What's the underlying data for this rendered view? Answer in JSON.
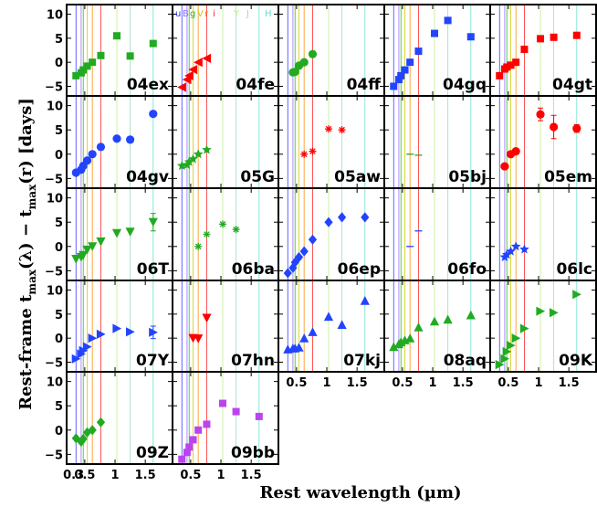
{
  "chart_data": {
    "type": "scatter",
    "layout": "small-multiples grid, 5 columns x 5 rows",
    "xlabel": "Rest wavelength (µm)",
    "ylabel": "Rest-frame t_max(λ) − t_max(r) [days]",
    "ylabel_parts": {
      "a": "Rest-frame t",
      "a_sub": "max",
      "b": "(λ) − t",
      "b_sub": "max",
      "c": "(r) [days]"
    },
    "xlim": [
      0.2,
      1.95
    ],
    "ylim": [
      -7,
      12
    ],
    "xticks": [
      0.5,
      1,
      1.5
    ],
    "xtick_labels": [
      "0.5",
      "1",
      "1.5"
    ],
    "xtick_label_extra": "0.3",
    "yticks": [
      -5,
      0,
      5,
      10
    ],
    "ytick_labels": [
      "−5",
      "0",
      "5",
      "10"
    ],
    "bands": [
      {
        "name": "u",
        "wave": 0.355,
        "color": "#3333ff"
      },
      {
        "name": "B",
        "wave": 0.44,
        "color": "#9966ff"
      },
      {
        "name": "g",
        "wave": 0.475,
        "color": "#22bb22"
      },
      {
        "name": "V",
        "wave": 0.54,
        "color": "#cccc00"
      },
      {
        "name": "r",
        "wave": 0.625,
        "color": "#ff8800"
      },
      {
        "name": "i",
        "wave": 0.765,
        "color": "#ff2222"
      },
      {
        "name": "Y",
        "wave": 1.03,
        "color": "#bbee88"
      },
      {
        "name": "J",
        "wave": 1.25,
        "color": "#99ddbb"
      },
      {
        "name": "H",
        "wave": 1.63,
        "color": "#66ddcc"
      }
    ],
    "band_legend_panel": "04fe",
    "panels": [
      {
        "name": "04ex",
        "color": "#22aa22",
        "marker": "square",
        "points": [
          [
            0.355,
            -2.8
          ],
          [
            0.44,
            -2.2
          ],
          [
            0.475,
            -1.6
          ],
          [
            0.54,
            -0.8
          ],
          [
            0.625,
            0
          ],
          [
            0.765,
            1.4
          ],
          [
            1.03,
            5.5
          ],
          [
            1.25,
            1.3
          ],
          [
            1.63,
            3.9
          ]
        ]
      },
      {
        "name": "04fe",
        "color": "#ff0000",
        "marker": "triangle-left",
        "points": [
          [
            0.355,
            -5.2
          ],
          [
            0.44,
            -3.6
          ],
          [
            0.475,
            -2.8
          ],
          [
            0.54,
            -1.5
          ],
          [
            0.625,
            0
          ],
          [
            0.765,
            0.8
          ]
        ]
      },
      {
        "name": "04ff",
        "color": "#22aa22",
        "marker": "circle",
        "points": [
          [
            0.44,
            -2.1
          ],
          [
            0.475,
            -2
          ],
          [
            0.54,
            -0.7
          ],
          [
            0.625,
            0
          ],
          [
            0.765,
            1.7
          ]
        ]
      },
      {
        "name": "04gq",
        "color": "#2244ff",
        "marker": "square",
        "points": [
          [
            0.355,
            -5
          ],
          [
            0.44,
            -3.6
          ],
          [
            0.475,
            -2.8
          ],
          [
            0.54,
            -1.6
          ],
          [
            0.625,
            0
          ],
          [
            0.765,
            2.3
          ],
          [
            1.03,
            6
          ],
          [
            1.25,
            8.7
          ],
          [
            1.63,
            5.3
          ]
        ]
      },
      {
        "name": "04gt",
        "color": "#ff0000",
        "marker": "square",
        "points": [
          [
            0.355,
            -2.8
          ],
          [
            0.44,
            -1.4
          ],
          [
            0.475,
            -1
          ],
          [
            0.54,
            -0.6
          ],
          [
            0.625,
            0
          ],
          [
            0.765,
            2.7
          ],
          [
            1.03,
            4.9
          ],
          [
            1.25,
            5.2
          ],
          [
            1.63,
            5.6
          ]
        ]
      },
      {
        "name": "04gv",
        "color": "#2244ff",
        "marker": "circle",
        "points": [
          [
            0.355,
            -3.8
          ],
          [
            0.44,
            -3.2
          ],
          [
            0.475,
            -2.4
          ],
          [
            0.54,
            -1.3
          ],
          [
            0.625,
            0
          ],
          [
            0.765,
            1.5
          ],
          [
            1.03,
            3.2
          ],
          [
            1.25,
            3
          ],
          [
            1.63,
            8.3
          ]
        ]
      },
      {
        "name": "05G",
        "color": "#22aa22",
        "marker": "star",
        "points": [
          [
            0.355,
            -2.4
          ],
          [
            0.44,
            -2.2
          ],
          [
            0.475,
            -1.6
          ],
          [
            0.54,
            -1
          ],
          [
            0.625,
            0
          ],
          [
            0.765,
            0.9
          ]
        ]
      },
      {
        "name": "05aw",
        "color": "#ff0000",
        "marker": "asterisk",
        "points": [
          [
            0.625,
            0
          ],
          [
            0.765,
            0.6
          ],
          [
            1.03,
            5.2
          ],
          [
            1.25,
            5
          ]
        ]
      },
      {
        "name": "05bj",
        "color": "#22aa22",
        "marker": "dash",
        "points": [
          [
            0.625,
            0
          ],
          [
            0.765,
            -0.2
          ]
        ]
      },
      {
        "name": "05em",
        "color": "#ff0000",
        "marker": "circle",
        "points": [
          [
            0.44,
            -2.5
          ],
          [
            0.54,
            0
          ],
          [
            0.625,
            0.6
          ],
          [
            1.03,
            8.2
          ],
          [
            1.25,
            5.6
          ],
          [
            1.63,
            5.3
          ]
        ],
        "errors": [
          0,
          0,
          0,
          1.3,
          2.4,
          0.8
        ]
      },
      {
        "name": "06T",
        "color": "#22aa22",
        "marker": "triangle-down",
        "points": [
          [
            0.355,
            -2.6
          ],
          [
            0.44,
            -2.2
          ],
          [
            0.475,
            -1.8
          ],
          [
            0.54,
            -0.7
          ],
          [
            0.625,
            0
          ],
          [
            0.765,
            1
          ],
          [
            1.03,
            2.7
          ],
          [
            1.25,
            3
          ],
          [
            1.63,
            5
          ]
        ],
        "errors": [
          0,
          0,
          0,
          0,
          0,
          0,
          0,
          0,
          1.8
        ]
      },
      {
        "name": "06ba",
        "color": "#22aa22",
        "marker": "asterisk",
        "points": [
          [
            0.625,
            0
          ],
          [
            0.765,
            2.5
          ],
          [
            1.03,
            4.6
          ],
          [
            1.25,
            3.5
          ]
        ]
      },
      {
        "name": "06ep",
        "color": "#2244ff",
        "marker": "diamond",
        "points": [
          [
            0.355,
            -5.5
          ],
          [
            0.44,
            -4.4
          ],
          [
            0.475,
            -3.3
          ],
          [
            0.54,
            -2.2
          ],
          [
            0.625,
            -1
          ],
          [
            0.765,
            1.4
          ],
          [
            1.03,
            5
          ],
          [
            1.25,
            6
          ],
          [
            1.63,
            6
          ]
        ]
      },
      {
        "name": "06fo",
        "color": "#2244ff",
        "marker": "dash",
        "points": [
          [
            0.625,
            0
          ],
          [
            0.765,
            3.2
          ]
        ]
      },
      {
        "name": "06lc",
        "color": "#2244ff",
        "marker": "star",
        "points": [
          [
            0.44,
            -2.2
          ],
          [
            0.475,
            -1.7
          ],
          [
            0.54,
            -1
          ],
          [
            0.625,
            0
          ],
          [
            0.765,
            -0.6
          ]
        ]
      },
      {
        "name": "07Y",
        "color": "#2244ff",
        "marker": "triangle-right",
        "points": [
          [
            0.355,
            -4.3
          ],
          [
            0.44,
            -3.3
          ],
          [
            0.475,
            -2.6
          ],
          [
            0.54,
            -1.8
          ],
          [
            0.625,
            0
          ],
          [
            0.765,
            0.8
          ],
          [
            1.03,
            2
          ],
          [
            1.25,
            1.3
          ],
          [
            1.63,
            1.2
          ]
        ],
        "errors": [
          0,
          0,
          0,
          0,
          0,
          0,
          0,
          0,
          1.3
        ]
      },
      {
        "name": "07hn",
        "color": "#ff0000",
        "marker": "triangle-down",
        "points": [
          [
            0.54,
            0
          ],
          [
            0.625,
            -0.1
          ],
          [
            0.765,
            4.2
          ]
        ]
      },
      {
        "name": "07kj",
        "color": "#2244ff",
        "marker": "triangle-up",
        "points": [
          [
            0.355,
            -2.3
          ],
          [
            0.44,
            -2.1
          ],
          [
            0.475,
            -2.1
          ],
          [
            0.54,
            -1.9
          ],
          [
            0.625,
            0
          ],
          [
            0.765,
            1.3
          ],
          [
            1.03,
            4.5
          ],
          [
            1.25,
            2.8
          ],
          [
            1.63,
            7.8
          ]
        ]
      },
      {
        "name": "08aq",
        "color": "#22aa22",
        "marker": "triangle-up",
        "points": [
          [
            0.355,
            -1.8
          ],
          [
            0.44,
            -1.2
          ],
          [
            0.475,
            -0.8
          ],
          [
            0.54,
            -0.4
          ],
          [
            0.625,
            0
          ],
          [
            0.765,
            2.3
          ],
          [
            1.03,
            3.5
          ],
          [
            1.25,
            3.9
          ],
          [
            1.63,
            4.8
          ]
        ]
      },
      {
        "name": "09K",
        "color": "#22aa22",
        "marker": "triangle-right",
        "points": [
          [
            0.355,
            -5.5
          ],
          [
            0.44,
            -4.3
          ],
          [
            0.475,
            -2.8
          ],
          [
            0.54,
            -1.5
          ],
          [
            0.625,
            0
          ],
          [
            0.765,
            2
          ],
          [
            1.03,
            5.6
          ],
          [
            1.25,
            5.3
          ],
          [
            1.63,
            9.1
          ]
        ]
      },
      {
        "name": "09Z",
        "color": "#22aa22",
        "marker": "diamond",
        "points": [
          [
            0.355,
            -1.7
          ],
          [
            0.44,
            -2.4
          ],
          [
            0.475,
            -1.8
          ],
          [
            0.54,
            -0.5
          ],
          [
            0.625,
            0
          ],
          [
            0.765,
            1.6
          ]
        ]
      },
      {
        "name": "09bb",
        "color": "#bb44ee",
        "marker": "square",
        "points": [
          [
            0.355,
            -6
          ],
          [
            0.44,
            -4.6
          ],
          [
            0.475,
            -3.5
          ],
          [
            0.54,
            -2
          ],
          [
            0.625,
            0
          ],
          [
            0.765,
            1.2
          ],
          [
            1.03,
            5.5
          ],
          [
            1.25,
            3.8
          ],
          [
            1.63,
            2.8
          ]
        ]
      }
    ]
  }
}
